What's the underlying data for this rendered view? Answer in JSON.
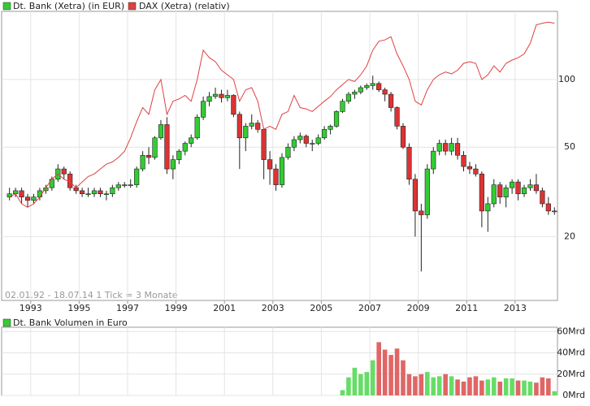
{
  "chart_data": [
    {
      "type": "candlestick",
      "annotation": "02.01.92 - 18.07.14   1 Tick = 3 Monate",
      "x": [
        1992.125,
        1992.375,
        1992.625,
        1992.875,
        1993.125,
        1993.375,
        1993.625,
        1993.875,
        1994.125,
        1994.375,
        1994.625,
        1994.875,
        1995.125,
        1995.375,
        1995.625,
        1995.875,
        1996.125,
        1996.375,
        1996.625,
        1996.875,
        1997.125,
        1997.375,
        1997.625,
        1997.875,
        1998.125,
        1998.375,
        1998.625,
        1998.875,
        1999.125,
        1999.375,
        1999.625,
        1999.875,
        2000.125,
        2000.375,
        2000.625,
        2000.875,
        2001.125,
        2001.375,
        2001.625,
        2001.875,
        2002.125,
        2002.375,
        2002.625,
        2002.875,
        2003.125,
        2003.375,
        2003.625,
        2003.875,
        2004.125,
        2004.375,
        2004.625,
        2004.875,
        2005.125,
        2005.375,
        2005.625,
        2005.875,
        2006.125,
        2006.375,
        2006.625,
        2006.875,
        2007.125,
        2007.375,
        2007.625,
        2007.875,
        2008.125,
        2008.375,
        2008.625,
        2008.875,
        2009.125,
        2009.375,
        2009.625,
        2009.875,
        2010.125,
        2010.375,
        2010.625,
        2010.875,
        2011.125,
        2011.375,
        2011.625,
        2011.875,
        2012.125,
        2012.375,
        2012.625,
        2012.875,
        2013.125,
        2013.375,
        2013.625,
        2013.875,
        2014.125,
        2014.375,
        2014.625
      ],
      "xlim": [
        1991.8,
        2014.75
      ],
      "xticks": [
        1993,
        1995,
        1997,
        1999,
        2001,
        2003,
        2005,
        2007,
        2009,
        2011,
        2013
      ],
      "ylim": [
        10.4,
        201
      ],
      "yticks": [
        20,
        50,
        100
      ],
      "log_scale": true,
      "grid": true,
      "series": [
        {
          "name": "Dt. Bank (Xetra) (in EUR)",
          "color": "#33cc33",
          "down_color": "#dd3333",
          "values": [
            [
              30,
              33,
              29,
              31
            ],
            [
              31,
              33,
              30,
              32
            ],
            [
              32,
              33,
              28,
              30
            ],
            [
              30,
              31,
              27,
              29
            ],
            [
              29,
              31,
              28,
              30
            ],
            [
              30,
              33,
              29,
              32
            ],
            [
              32,
              34,
              31,
              33
            ],
            [
              33,
              37,
              32,
              36
            ],
            [
              36,
              42,
              35,
              40
            ],
            [
              40,
              41,
              36,
              38
            ],
            [
              38,
              39,
              32,
              33
            ],
            [
              33,
              34,
              31,
              32
            ],
            [
              32,
              33,
              30,
              31
            ],
            [
              31,
              33,
              30,
              31
            ],
            [
              31,
              33,
              30,
              32
            ],
            [
              32,
              33,
              30,
              31
            ],
            [
              31,
              32,
              29,
              31
            ],
            [
              31,
              34,
              30,
              33
            ],
            [
              33,
              35,
              32,
              34
            ],
            [
              34,
              35,
              33,
              34
            ],
            [
              34,
              36,
              33,
              34
            ],
            [
              34,
              41,
              33,
              40
            ],
            [
              40,
              48,
              39,
              46
            ],
            [
              46,
              50,
              42,
              45
            ],
            [
              45,
              56,
              44,
              55
            ],
            [
              55,
              66,
              54,
              63
            ],
            [
              63,
              68,
              38,
              40
            ],
            [
              40,
              46,
              36,
              44
            ],
            [
              44,
              49,
              42,
              48
            ],
            [
              48,
              53,
              46,
              52
            ],
            [
              52,
              57,
              50,
              55
            ],
            [
              55,
              70,
              54,
              68
            ],
            [
              68,
              84,
              66,
              80
            ],
            [
              80,
              88,
              76,
              84
            ],
            [
              84,
              92,
              82,
              86
            ],
            [
              86,
              90,
              79,
              83
            ],
            [
              83,
              90,
              80,
              85
            ],
            [
              85,
              86,
              68,
              70
            ],
            [
              70,
              72,
              40,
              55
            ],
            [
              55,
              64,
              48,
              62
            ],
            [
              62,
              70,
              60,
              64
            ],
            [
              64,
              66,
              58,
              60
            ],
            [
              60,
              61,
              36,
              44
            ],
            [
              44,
              48,
              34,
              40
            ],
            [
              40,
              42,
              32,
              34
            ],
            [
              34,
              47,
              33,
              45
            ],
            [
              45,
              52,
              44,
              50
            ],
            [
              50,
              56,
              48,
              54
            ],
            [
              54,
              58,
              52,
              56
            ],
            [
              56,
              57,
              50,
              52
            ],
            [
              52,
              54,
              48,
              52
            ],
            [
              52,
              57,
              51,
              55
            ],
            [
              55,
              62,
              54,
              60
            ],
            [
              60,
              63,
              57,
              62
            ],
            [
              62,
              73,
              61,
              72
            ],
            [
              72,
              82,
              71,
              80
            ],
            [
              80,
              88,
              78,
              86
            ],
            [
              86,
              90,
              82,
              88
            ],
            [
              88,
              94,
              86,
              92
            ],
            [
              92,
              96,
              90,
              94
            ],
            [
              94,
              104,
              90,
              96
            ],
            [
              96,
              98,
              88,
              90
            ],
            [
              90,
              92,
              80,
              86
            ],
            [
              86,
              88,
              72,
              75
            ],
            [
              75,
              76,
              60,
              62
            ],
            [
              62,
              64,
              49,
              50
            ],
            [
              50,
              52,
              34,
              36
            ],
            [
              36,
              38,
              20,
              26
            ],
            [
              26,
              28,
              14,
              25
            ],
            [
              25,
              42,
              24,
              40
            ],
            [
              40,
              50,
              38,
              48
            ],
            [
              48,
              54,
              46,
              52
            ],
            [
              52,
              54,
              46,
              48
            ],
            [
              48,
              55,
              46,
              52
            ],
            [
              52,
              55,
              44,
              46
            ],
            [
              46,
              48,
              39,
              41
            ],
            [
              41,
              43,
              38,
              40
            ],
            [
              40,
              42,
              37,
              38
            ],
            [
              38,
              39,
              22,
              26
            ],
            [
              26,
              30,
              21,
              28
            ],
            [
              28,
              36,
              27,
              34
            ],
            [
              34,
              35,
              28,
              30
            ],
            [
              30,
              34,
              27,
              33
            ],
            [
              33,
              36,
              31,
              35
            ],
            [
              35,
              36,
              29,
              31
            ],
            [
              31,
              34,
              30,
              33
            ],
            [
              33,
              36,
              32,
              34
            ],
            [
              34,
              38,
              31,
              32
            ],
            [
              32,
              33,
              27,
              28
            ],
            [
              28,
              30,
              25,
              26
            ],
            [
              26,
              27,
              25,
              26
            ]
          ]
        },
        {
          "name": "DAX (Xetra) (relativ)",
          "color": "#e04040",
          "type": "line",
          "values": [
            30,
            31,
            28,
            27,
            28,
            30,
            33,
            36,
            38,
            36,
            35,
            33,
            35,
            37,
            38,
            40,
            42,
            43,
            45,
            48,
            55,
            65,
            75,
            70,
            90,
            100,
            70,
            80,
            82,
            85,
            80,
            100,
            135,
            125,
            120,
            110,
            105,
            100,
            80,
            90,
            92,
            80,
            60,
            62,
            60,
            70,
            72,
            85,
            75,
            74,
            72,
            76,
            80,
            84,
            90,
            95,
            100,
            98,
            105,
            115,
            135,
            148,
            150,
            155,
            130,
            115,
            100,
            80,
            77,
            90,
            100,
            105,
            108,
            106,
            110,
            118,
            120,
            118,
            100,
            105,
            115,
            108,
            118,
            122,
            125,
            130,
            145,
            175,
            178,
            180,
            178
          ]
        }
      ]
    },
    {
      "type": "bar",
      "ylim": [
        0,
        64
      ],
      "yticks": [
        {
          "value": 0,
          "label": "0Mrd"
        },
        {
          "value": 20,
          "label": "20Mrd"
        },
        {
          "value": 40,
          "label": "40Mrd"
        },
        {
          "value": 60,
          "label": "60Mrd"
        }
      ],
      "grid": true,
      "up_color": "#66dd66",
      "down_color": "#e06666",
      "series": [
        {
          "name": "Dt. Bank Volumen in Euro",
          "color": "#33cc33",
          "values": [
            null,
            null,
            null,
            null,
            null,
            null,
            null,
            null,
            null,
            null,
            null,
            null,
            null,
            null,
            null,
            null,
            null,
            null,
            null,
            null,
            null,
            null,
            null,
            null,
            null,
            null,
            null,
            null,
            null,
            null,
            null,
            null,
            null,
            null,
            null,
            null,
            null,
            null,
            null,
            null,
            null,
            null,
            null,
            null,
            null,
            null,
            null,
            null,
            null,
            null,
            null,
            null,
            null,
            null,
            null,
            5,
            17,
            26,
            20,
            22,
            33,
            50,
            43,
            38,
            44,
            33,
            20,
            18,
            20,
            22,
            17,
            18,
            20,
            18,
            15,
            13,
            17,
            18,
            14,
            15,
            17,
            13,
            16,
            16,
            14,
            14,
            13,
            12,
            17,
            16,
            4
          ]
        }
      ]
    }
  ]
}
